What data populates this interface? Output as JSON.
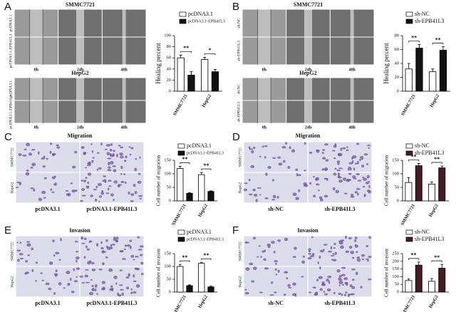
{
  "panels": [
    {
      "label": "A",
      "blocks": [
        {
          "title": "SMMC7721",
          "rows": [
            "pcDNA3.1",
            "pcDNA3.1-EPB41L3"
          ],
          "cols": [
            "0h",
            "24h",
            "48h"
          ]
        },
        {
          "title": "HepG2",
          "rows": [
            "pcDNA3.1",
            "pcDNA3.1-EPB41L3"
          ],
          "cols": [
            "0h",
            "24h",
            "48h"
          ]
        }
      ]
    },
    {
      "label": "B",
      "blocks": [
        {
          "title": "SMMC7721",
          "rows": [
            "sh-NC",
            "sh-EPB41L3"
          ],
          "cols": [
            "0h",
            "24h",
            "48h"
          ]
        },
        {
          "title": "HepG2",
          "rows": [
            "sh-NC",
            "sh-EPB41L3"
          ],
          "cols": [
            "0h",
            "24h",
            "48h"
          ]
        }
      ]
    },
    {
      "label": "C",
      "blocks": [
        {
          "title": "Migration",
          "rows": [
            "SMMC7721",
            "HepG2"
          ],
          "cols": [
            "pcDNA3.1",
            "pcDNA3.1-EPB41L3"
          ]
        }
      ]
    },
    {
      "label": "D",
      "blocks": [
        {
          "title": "Migration",
          "rows": [
            "SMMC7721",
            "HepG2"
          ],
          "cols": [
            "sh-NC",
            "sh-EPB41L3"
          ]
        }
      ]
    },
    {
      "label": "E",
      "blocks": [
        {
          "title": "Invasion",
          "rows": [
            "SMMC7721",
            "HepG2"
          ],
          "cols": [
            "pcDNA3.1",
            "pcDNA3.1-EPB41L3"
          ]
        }
      ]
    },
    {
      "label": "F",
      "blocks": [
        {
          "title": "Invasion",
          "rows": [
            "SMMC7721",
            "HepG2"
          ],
          "cols": [
            "sh-NC",
            "sh-EPB41L3"
          ]
        }
      ]
    }
  ],
  "chart_data": [
    {
      "type": "bar",
      "ylabel": "Healing percent",
      "categories": [
        "SMMC7721",
        "HepG2"
      ],
      "ylim": [
        0,
        100
      ],
      "yticks": [
        0,
        20,
        40,
        60,
        80,
        100
      ],
      "significance": [
        "**",
        "*"
      ],
      "series": [
        {
          "name": "pcDNA3.1",
          "color": "#ffffff",
          "values": [
            60,
            57
          ],
          "errors": [
            5,
            4
          ]
        },
        {
          "name": "pcDNA3.1-EPB41L3",
          "color": "#111111",
          "values": [
            29,
            35
          ],
          "errors": [
            6,
            4
          ]
        }
      ]
    },
    {
      "type": "bar",
      "ylabel": "Healing percent",
      "categories": [
        "SMMC7721",
        "HepG2"
      ],
      "ylim": [
        0,
        80
      ],
      "yticks": [
        0,
        20,
        40,
        60,
        80
      ],
      "significance": [
        "**",
        "**"
      ],
      "series": [
        {
          "name": "sh-NC",
          "color": "#ffffff",
          "values": [
            32,
            28
          ],
          "errors": [
            8,
            4
          ]
        },
        {
          "name": "sh-EPB41L3",
          "color": "#111111",
          "values": [
            62,
            59
          ],
          "errors": [
            5,
            5
          ]
        }
      ]
    },
    {
      "type": "bar",
      "ylabel": "Cell number of migration",
      "categories": [
        "SMMC7721",
        "HepG2"
      ],
      "ylim": [
        0,
        150
      ],
      "yticks": [
        0,
        50,
        100,
        150
      ],
      "significance": [
        "**",
        "**"
      ],
      "series": [
        {
          "name": "pcDNA3.1",
          "color": "#ffffff",
          "values": [
            120,
            97
          ],
          "errors": [
            8,
            8
          ]
        },
        {
          "name": "pcDNA3.1-EPB41L3",
          "color": "#111111",
          "values": [
            28,
            35
          ],
          "errors": [
            2,
            2
          ]
        }
      ]
    },
    {
      "type": "bar",
      "ylabel": "Cell number of migration",
      "categories": [
        "SMMC7721",
        "HepG2"
      ],
      "ylim": [
        0,
        150
      ],
      "yticks": [
        0,
        50,
        100,
        150
      ],
      "significance": [
        "**",
        "**"
      ],
      "series": [
        {
          "name": "sh-NC",
          "color": "#ffffff",
          "values": [
            68,
            62
          ],
          "errors": [
            18,
            8
          ]
        },
        {
          "name": "sh-EPB41L3",
          "color": "#4a1a24",
          "values": [
            130,
            122
          ],
          "errors": [
            8,
            7
          ]
        }
      ]
    },
    {
      "type": "bar",
      "ylabel": "Cell number of invasion",
      "categories": [
        "SMMC7721",
        "HepG2"
      ],
      "ylim": [
        0,
        150
      ],
      "yticks": [
        0,
        50,
        100,
        150
      ],
      "significance": [
        "**",
        "**"
      ],
      "series": [
        {
          "name": "pcDNA3.1",
          "color": "#ffffff",
          "values": [
            100,
            112
          ],
          "errors": [
            8,
            4
          ]
        },
        {
          "name": "pcDNA3.1-EPB41L3",
          "color": "#111111",
          "values": [
            25,
            20
          ],
          "errors": [
            3,
            3
          ]
        }
      ]
    },
    {
      "type": "bar",
      "ylabel": "Cell number of invasion",
      "categories": [
        "SMMC7721",
        "HepG2"
      ],
      "ylim": [
        0,
        250
      ],
      "yticks": [
        0,
        50,
        100,
        150,
        200,
        250
      ],
      "significance": [
        "**",
        "**"
      ],
      "series": [
        {
          "name": "sh-NC",
          "color": "#ffffff",
          "values": [
            75,
            70
          ],
          "errors": [
            10,
            18
          ]
        },
        {
          "name": "sh-EPB41L3",
          "color": "#4a1a24",
          "values": [
            175,
            155
          ],
          "errors": [
            20,
            25
          ]
        }
      ]
    }
  ]
}
